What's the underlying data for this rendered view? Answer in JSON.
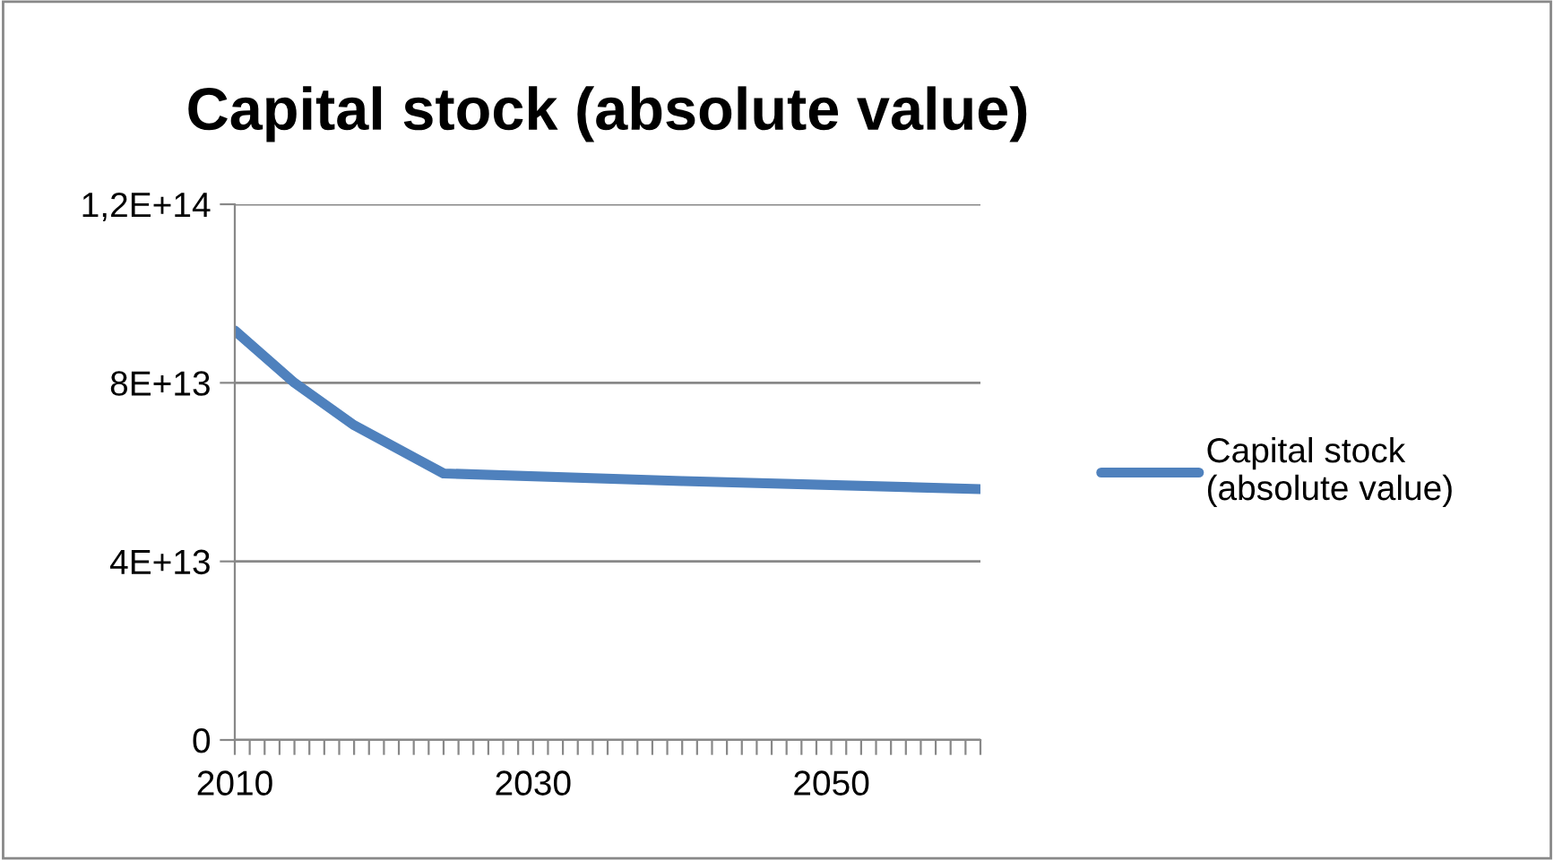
{
  "chart_data": {
    "type": "line",
    "title": "Capital stock (absolute value)",
    "x": [
      2010,
      2014,
      2018,
      2024,
      2040,
      2060
    ],
    "series": [
      {
        "name": "Capital stock\n(absolute value)",
        "color": "#4f81bd",
        "values": [
          91700000000000.0,
          80000000000000.0,
          70500000000000.0,
          59700000000000.0,
          58000000000000.0,
          56200000000000.0
        ]
      }
    ],
    "xlim": [
      2010,
      2060
    ],
    "xticks": [
      2010,
      {
        "value": 2011,
        "label": null
      },
      {
        "value": 2012,
        "label": null
      },
      {
        "value": 2013,
        "label": null
      },
      {
        "value": 2014,
        "label": null
      },
      {
        "value": 2015,
        "label": null
      },
      {
        "value": 2016,
        "label": null
      },
      {
        "value": 2017,
        "label": null
      },
      {
        "value": 2018,
        "label": null
      },
      {
        "value": 2019,
        "label": null
      },
      {
        "value": 2020,
        "label": null
      },
      {
        "value": 2021,
        "label": null
      },
      {
        "value": 2022,
        "label": null
      },
      {
        "value": 2023,
        "label": null
      },
      {
        "value": 2024,
        "label": null
      },
      {
        "value": 2025,
        "label": null
      },
      {
        "value": 2026,
        "label": null
      },
      {
        "value": 2027,
        "label": null
      },
      {
        "value": 2028,
        "label": null
      },
      {
        "value": 2029,
        "label": null
      },
      2030,
      {
        "value": 2031,
        "label": null
      },
      {
        "value": 2032,
        "label": null
      },
      {
        "value": 2033,
        "label": null
      },
      {
        "value": 2034,
        "label": null
      },
      {
        "value": 2035,
        "label": null
      },
      {
        "value": 2036,
        "label": null
      },
      {
        "value": 2037,
        "label": null
      },
      {
        "value": 2038,
        "label": null
      },
      {
        "value": 2039,
        "label": null
      },
      {
        "value": 2040,
        "label": null
      },
      {
        "value": 2041,
        "label": null
      },
      {
        "value": 2042,
        "label": null
      },
      {
        "value": 2043,
        "label": null
      },
      {
        "value": 2044,
        "label": null
      },
      {
        "value": 2045,
        "label": null
      },
      {
        "value": 2046,
        "label": null
      },
      {
        "value": 2047,
        "label": null
      },
      {
        "value": 2048,
        "label": null
      },
      {
        "value": 2049,
        "label": null
      },
      2050,
      {
        "value": 2051,
        "label": null
      },
      {
        "value": 2052,
        "label": null
      },
      {
        "value": 2053,
        "label": null
      },
      {
        "value": 2054,
        "label": null
      },
      {
        "value": 2055,
        "label": null
      },
      {
        "value": 2056,
        "label": null
      },
      {
        "value": 2057,
        "label": null
      },
      {
        "value": 2058,
        "label": null
      },
      {
        "value": 2059,
        "label": null
      },
      {
        "value": 2060,
        "label": null
      }
    ],
    "ylim": [
      0,
      120000000000000.0
    ],
    "yticks": [
      0,
      {
        "value": 40000000000000.0,
        "label": "4E+13"
      },
      {
        "value": 80000000000000.0,
        "label": "8E+13"
      },
      {
        "value": 120000000000000.0,
        "label": "1,2E+14"
      }
    ],
    "grid": "y",
    "legend": "right",
    "marker": "none",
    "line_style": "solid"
  }
}
